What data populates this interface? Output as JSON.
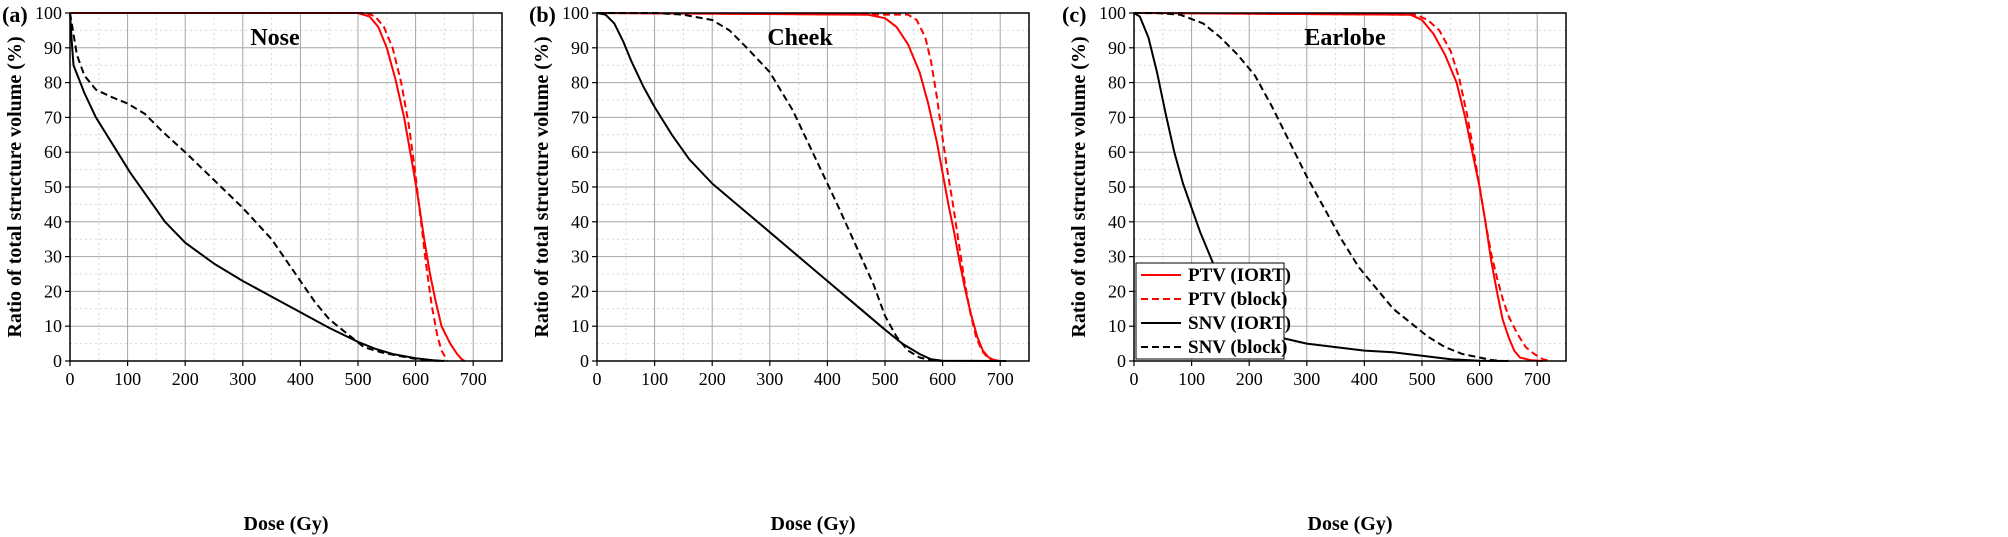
{
  "chart_data": [
    {
      "type": "line",
      "panel_label": "(a)",
      "title": "Nose",
      "xlabel": "Dose (Gy)",
      "ylabel": "Ratio of total structure volume (%)",
      "xlim": [
        0,
        750
      ],
      "ylim": [
        0,
        100
      ],
      "xticks": [
        "0",
        "100",
        "200",
        "300",
        "400",
        "500",
        "600",
        "700"
      ],
      "yticks": [
        "0",
        "10",
        "20",
        "30",
        "40",
        "50",
        "60",
        "70",
        "80",
        "90",
        "100"
      ],
      "grid": true,
      "series": [
        {
          "key": "ptv_iort",
          "color": "#ff0000",
          "dash": "solid",
          "points": [
            [
              0,
              100
            ],
            [
              500,
              100
            ],
            [
              520,
              99
            ],
            [
              535,
              96
            ],
            [
              550,
              90
            ],
            [
              565,
              81
            ],
            [
              580,
              70
            ],
            [
              595,
              56
            ],
            [
              605,
              46
            ],
            [
              615,
              35
            ],
            [
              625,
              25
            ],
            [
              635,
              17
            ],
            [
              645,
              10
            ],
            [
              660,
              5
            ],
            [
              672,
              2
            ],
            [
              680,
              0.5
            ],
            [
              685,
              0
            ]
          ]
        },
        {
          "key": "ptv_block",
          "color": "#ff0000",
          "dash": "dashed",
          "points": [
            [
              0,
              100
            ],
            [
              515,
              100
            ],
            [
              530,
              99
            ],
            [
              545,
              96
            ],
            [
              560,
              90
            ],
            [
              575,
              80
            ],
            [
              588,
              68
            ],
            [
              598,
              56
            ],
            [
              608,
              42
            ],
            [
              618,
              28
            ],
            [
              628,
              16
            ],
            [
              638,
              7
            ],
            [
              645,
              3
            ],
            [
              652,
              1
            ],
            [
              655,
              0
            ]
          ]
        },
        {
          "key": "snv_iort",
          "color": "#000000",
          "dash": "solid",
          "points": [
            [
              0,
              100
            ],
            [
              3,
              92
            ],
            [
              6,
              85
            ],
            [
              25,
              77
            ],
            [
              45,
              70
            ],
            [
              75,
              62
            ],
            [
              105,
              54
            ],
            [
              135,
              47
            ],
            [
              165,
              40
            ],
            [
              200,
              34
            ],
            [
              250,
              28
            ],
            [
              300,
              23
            ],
            [
              350,
              18.5
            ],
            [
              400,
              14
            ],
            [
              450,
              9.5
            ],
            [
              500,
              5.5
            ],
            [
              530,
              3.5
            ],
            [
              560,
              2
            ],
            [
              600,
              0.8
            ],
            [
              630,
              0.2
            ],
            [
              650,
              0
            ]
          ]
        },
        {
          "key": "snv_block",
          "color": "#000000",
          "dash": "dashed",
          "points": [
            [
              0,
              100
            ],
            [
              5,
              95
            ],
            [
              12,
              88
            ],
            [
              25,
              82
            ],
            [
              45,
              78
            ],
            [
              70,
              76
            ],
            [
              100,
              74
            ],
            [
              130,
              71
            ],
            [
              160,
              66
            ],
            [
              200,
              60
            ],
            [
              250,
              52
            ],
            [
              300,
              44
            ],
            [
              350,
              35
            ],
            [
              400,
              23
            ],
            [
              425,
              17
            ],
            [
              450,
              12
            ],
            [
              480,
              8
            ],
            [
              510,
              4
            ],
            [
              540,
              2.5
            ],
            [
              570,
              1.5
            ],
            [
              600,
              0.6
            ],
            [
              640,
              0
            ]
          ]
        }
      ]
    },
    {
      "type": "line",
      "panel_label": "(b)",
      "title": "Cheek",
      "xlabel": "Dose (Gy)",
      "ylabel": "Ratio of total structure volume (%)",
      "xlim": [
        0,
        750
      ],
      "ylim": [
        0,
        100
      ],
      "xticks": [
        "0",
        "100",
        "200",
        "300",
        "400",
        "500",
        "600",
        "700"
      ],
      "yticks": [
        "0",
        "10",
        "20",
        "30",
        "40",
        "50",
        "60",
        "70",
        "80",
        "90",
        "100"
      ],
      "grid": true,
      "series": [
        {
          "key": "ptv_iort",
          "color": "#ff0000",
          "dash": "solid",
          "points": [
            [
              0,
              100
            ],
            [
              470,
              99.5
            ],
            [
              500,
              98.5
            ],
            [
              520,
              96
            ],
            [
              540,
              91
            ],
            [
              560,
              83
            ],
            [
              575,
              74
            ],
            [
              590,
              63
            ],
            [
              600,
              54
            ],
            [
              610,
              45
            ],
            [
              620,
              37
            ],
            [
              630,
              28
            ],
            [
              640,
              20
            ],
            [
              650,
              13
            ],
            [
              660,
              7
            ],
            [
              670,
              3
            ],
            [
              680,
              1
            ],
            [
              690,
              0.3
            ],
            [
              700,
              0
            ]
          ]
        },
        {
          "key": "ptv_block",
          "color": "#ff0000",
          "dash": "dashed",
          "points": [
            [
              0,
              100
            ],
            [
              540,
              99.5
            ],
            [
              555,
              98
            ],
            [
              570,
              93
            ],
            [
              580,
              86
            ],
            [
              590,
              76
            ],
            [
              600,
              64
            ],
            [
              608,
              55
            ],
            [
              618,
              45
            ],
            [
              628,
              34
            ],
            [
              638,
              23
            ],
            [
              648,
              14
            ],
            [
              658,
              7
            ],
            [
              668,
              3
            ],
            [
              678,
              1
            ],
            [
              688,
              0
            ]
          ]
        },
        {
          "key": "snv_iort",
          "color": "#000000",
          "dash": "solid",
          "points": [
            [
              0,
              100
            ],
            [
              15,
              99.5
            ],
            [
              30,
              97
            ],
            [
              45,
              92
            ],
            [
              60,
              86
            ],
            [
              80,
              79
            ],
            [
              100,
              73
            ],
            [
              130,
              65
            ],
            [
              160,
              58
            ],
            [
              200,
              51
            ],
            [
              250,
              44
            ],
            [
              300,
              37
            ],
            [
              350,
              30
            ],
            [
              400,
              23
            ],
            [
              450,
              16
            ],
            [
              500,
              9
            ],
            [
              530,
              5
            ],
            [
              560,
              2
            ],
            [
              580,
              0.5
            ],
            [
              600,
              0.1
            ],
            [
              700,
              0
            ],
            [
              710,
              0
            ]
          ]
        },
        {
          "key": "snv_block",
          "color": "#000000",
          "dash": "dashed",
          "points": [
            [
              0,
              100
            ],
            [
              100,
              100
            ],
            [
              150,
              99.5
            ],
            [
              200,
              98
            ],
            [
              230,
              95
            ],
            [
              260,
              90
            ],
            [
              300,
              83
            ],
            [
              340,
              72
            ],
            [
              380,
              58
            ],
            [
              420,
              44
            ],
            [
              450,
              33
            ],
            [
              480,
              22
            ],
            [
              500,
              13
            ],
            [
              520,
              7
            ],
            [
              540,
              3
            ],
            [
              560,
              1
            ],
            [
              580,
              0.2
            ],
            [
              600,
              0
            ]
          ]
        }
      ]
    },
    {
      "type": "line",
      "panel_label": "(c)",
      "title": "Earlobe",
      "xlabel": "Dose (Gy)",
      "ylabel": "Ratio of total structure volume (%)",
      "xlim": [
        0,
        750
      ],
      "ylim": [
        0,
        100
      ],
      "xticks": [
        "0",
        "100",
        "200",
        "300",
        "400",
        "500",
        "600",
        "700"
      ],
      "yticks": [
        "0",
        "10",
        "20",
        "30",
        "40",
        "50",
        "60",
        "70",
        "80",
        "90",
        "100"
      ],
      "grid": true,
      "legend_position": "bottom-left",
      "series": [
        {
          "key": "ptv_iort",
          "name": "PTV (IORT)",
          "color": "#ff0000",
          "dash": "solid",
          "points": [
            [
              0,
              100
            ],
            [
              480,
              99.5
            ],
            [
              500,
              98
            ],
            [
              520,
              94
            ],
            [
              540,
              88
            ],
            [
              560,
              80
            ],
            [
              575,
              70
            ],
            [
              590,
              58
            ],
            [
              600,
              50
            ],
            [
              610,
              40
            ],
            [
              620,
              29
            ],
            [
              630,
              20
            ],
            [
              640,
              12
            ],
            [
              650,
              7
            ],
            [
              660,
              3
            ],
            [
              670,
              1
            ],
            [
              690,
              0.2
            ],
            [
              710,
              0
            ]
          ]
        },
        {
          "key": "ptv_block",
          "name": "PTV (block)",
          "color": "#ff0000",
          "dash": "dashed",
          "points": [
            [
              0,
              100
            ],
            [
              490,
              99.5
            ],
            [
              510,
              98
            ],
            [
              530,
              95
            ],
            [
              550,
              89
            ],
            [
              565,
              81
            ],
            [
              578,
              71
            ],
            [
              590,
              60
            ],
            [
              600,
              50
            ],
            [
              610,
              40
            ],
            [
              620,
              31
            ],
            [
              630,
              24
            ],
            [
              640,
              18
            ],
            [
              650,
              13
            ],
            [
              665,
              8
            ],
            [
              680,
              4
            ],
            [
              695,
              2
            ],
            [
              710,
              0.5
            ],
            [
              725,
              0
            ]
          ]
        },
        {
          "key": "snv_iort",
          "name": "SNV (IORT)",
          "color": "#000000",
          "dash": "solid",
          "points": [
            [
              0,
              100
            ],
            [
              10,
              99
            ],
            [
              25,
              93
            ],
            [
              40,
              83
            ],
            [
              55,
              71
            ],
            [
              70,
              60
            ],
            [
              85,
              51
            ],
            [
              100,
              44
            ],
            [
              115,
              37
            ],
            [
              130,
              31
            ],
            [
              145,
              25
            ],
            [
              160,
              20
            ],
            [
              175,
              15
            ],
            [
              185,
              10
            ],
            [
              195,
              9
            ],
            [
              220,
              8
            ],
            [
              260,
              6.5
            ],
            [
              300,
              5
            ],
            [
              350,
              4
            ],
            [
              400,
              3
            ],
            [
              450,
              2.5
            ],
            [
              500,
              1.5
            ],
            [
              550,
              0.5
            ],
            [
              600,
              0.1
            ],
            [
              650,
              0
            ]
          ]
        },
        {
          "key": "snv_block",
          "name": "SNV (block)",
          "color": "#000000",
          "dash": "dashed",
          "points": [
            [
              0,
              100
            ],
            [
              40,
              100
            ],
            [
              80,
              99.5
            ],
            [
              120,
              97
            ],
            [
              150,
              93
            ],
            [
              180,
              88
            ],
            [
              210,
              82
            ],
            [
              240,
              73
            ],
            [
              270,
              63
            ],
            [
              300,
              53
            ],
            [
              330,
              44
            ],
            [
              360,
              35
            ],
            [
              390,
              27
            ],
            [
              420,
              21
            ],
            [
              450,
              15
            ],
            [
              480,
              11
            ],
            [
              510,
              7
            ],
            [
              540,
              4
            ],
            [
              570,
              2
            ],
            [
              600,
              1
            ],
            [
              620,
              0.3
            ],
            [
              640,
              0
            ]
          ]
        }
      ]
    }
  ]
}
